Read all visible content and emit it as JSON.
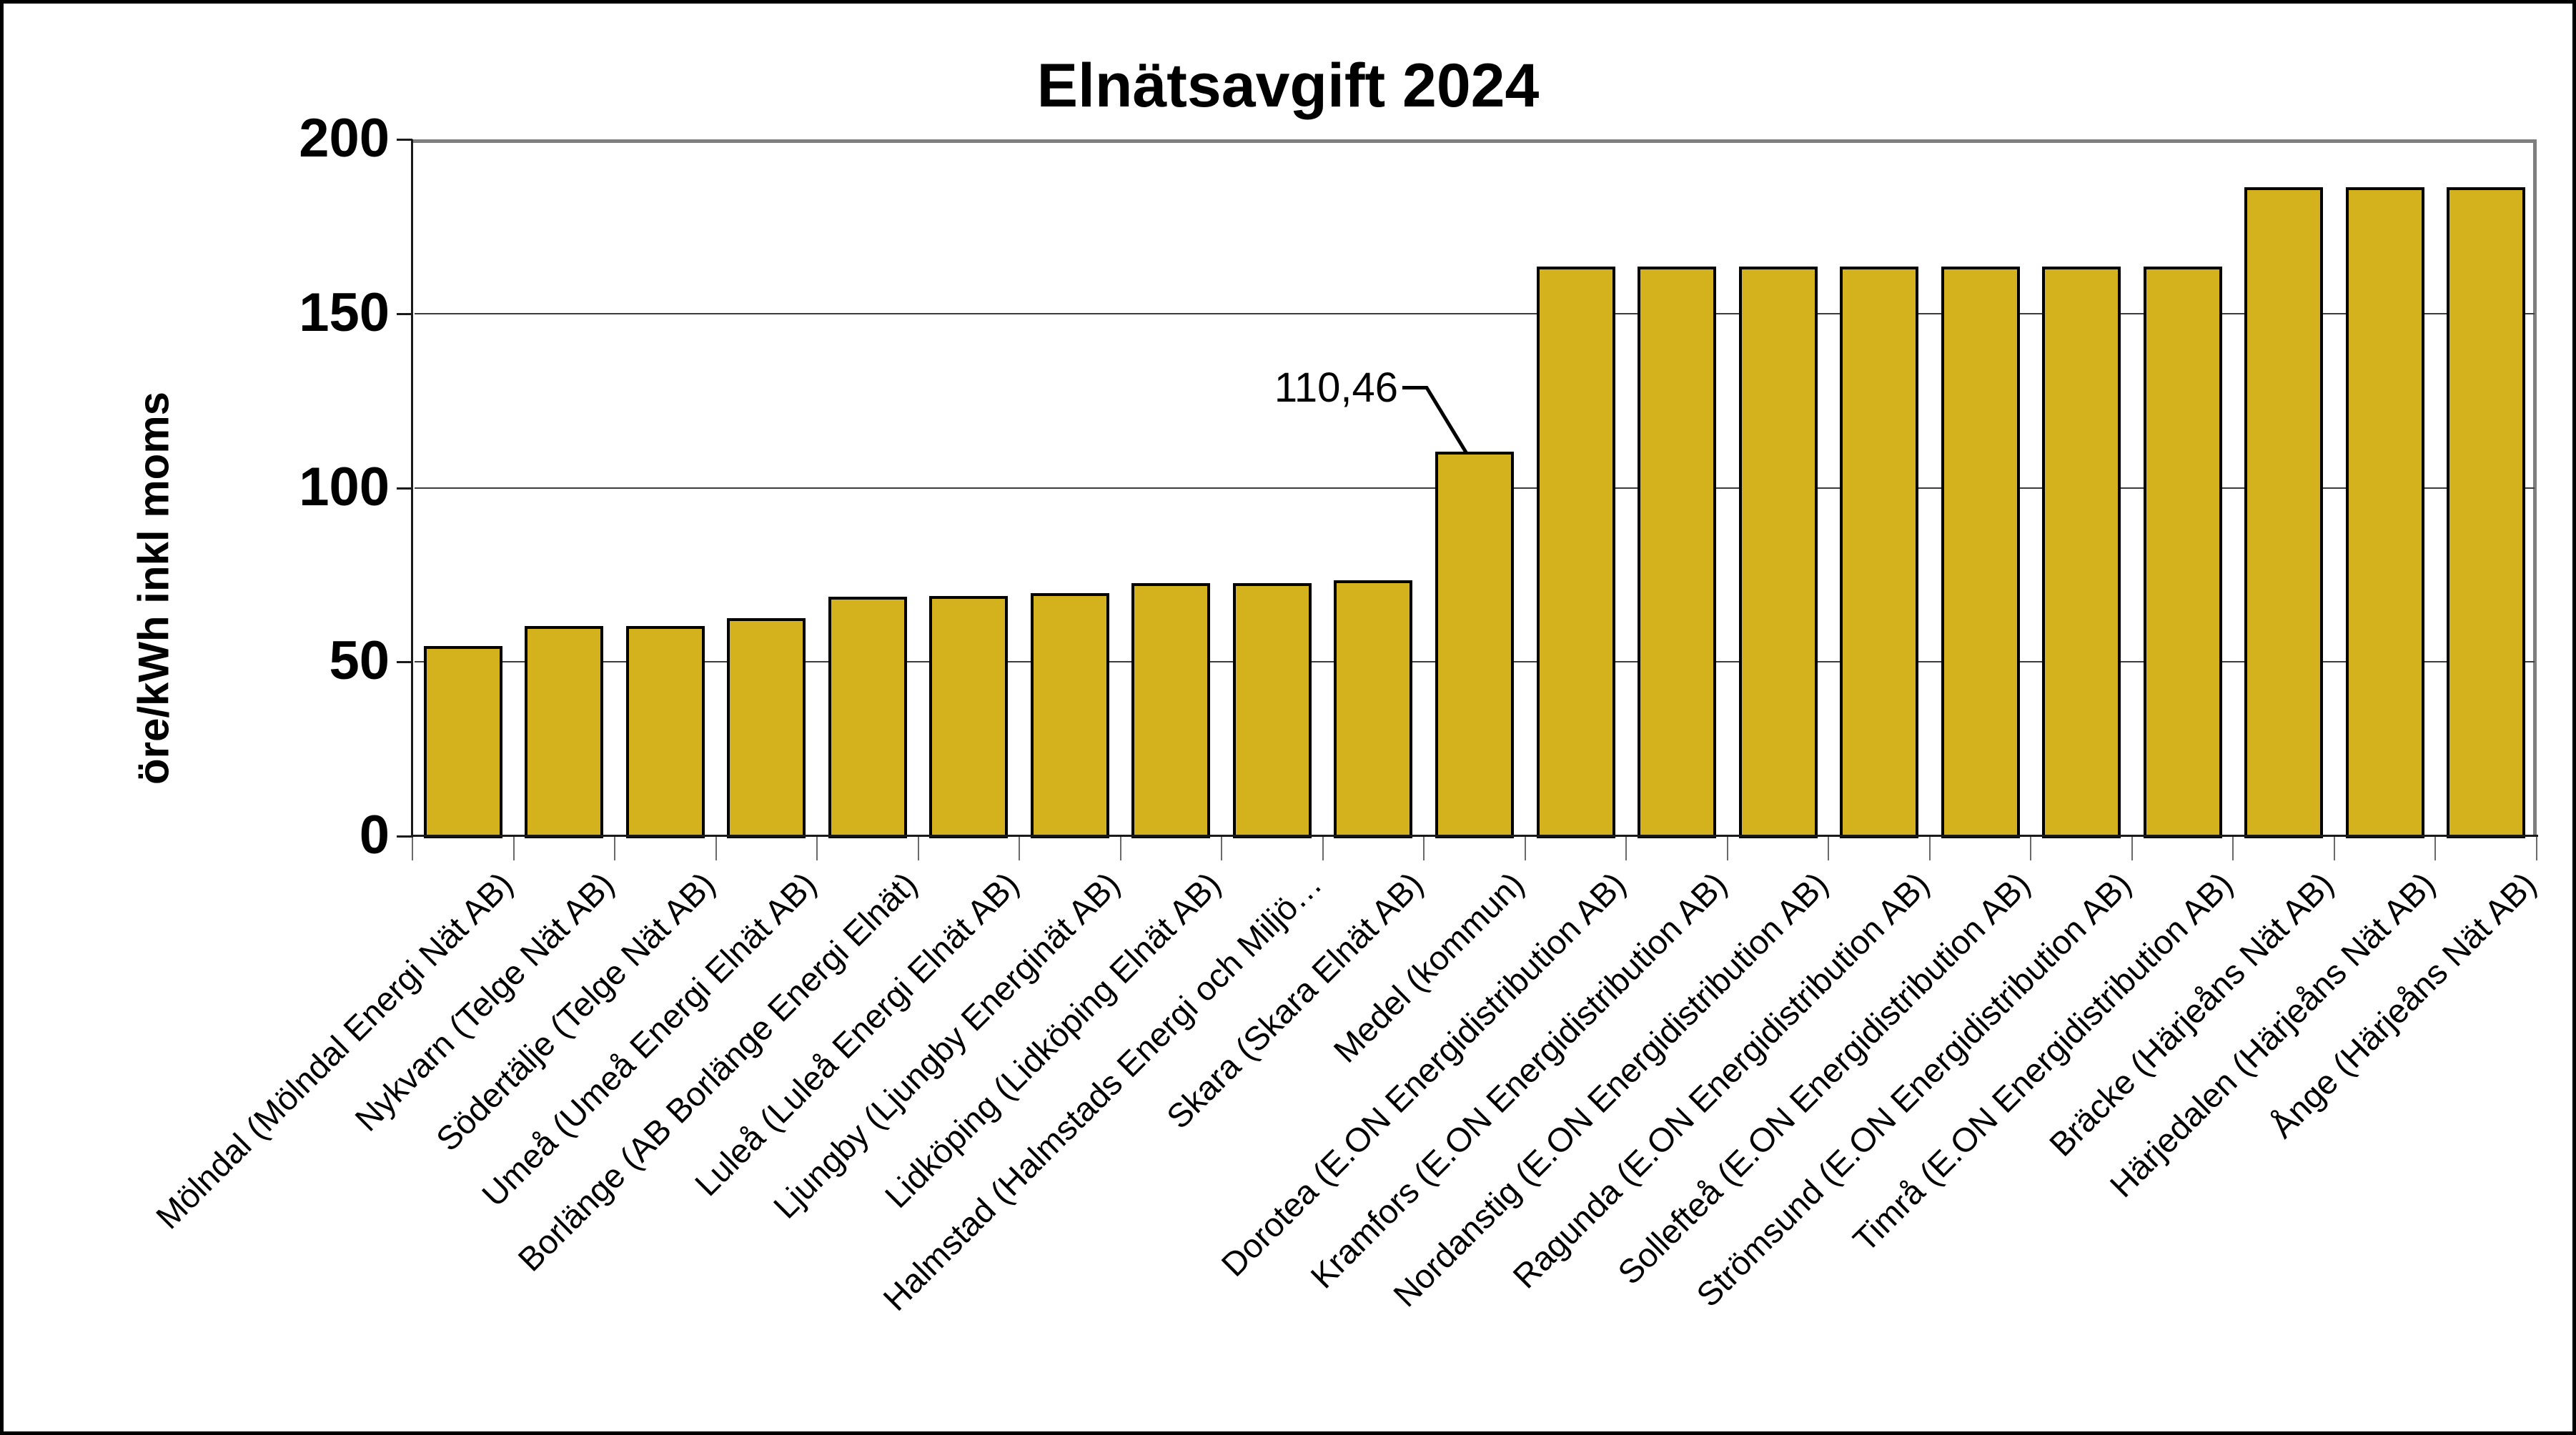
{
  "chart": {
    "title": "Elnätsavgift 2024"
  },
  "chart_data": {
    "type": "bar",
    "title": "Elnätsavgift 2024",
    "xlabel": "",
    "ylabel": "öre/kWh inkl moms",
    "ylim": [
      0,
      200
    ],
    "y_ticks": [
      0,
      50,
      100,
      150,
      200
    ],
    "grid": "horizontal gridlines at 50, 100, 150; gray frame on top and right",
    "legend": "none",
    "bar_color": "#D3B21D",
    "bar_border_color": "#000000",
    "frame_color": "#7f7f7f",
    "categories": [
      "Mölndal (Mölndal Energi Nät AB)",
      "Nykvarn (Telge Nät AB)",
      "Södertälje (Telge Nät AB)",
      "Umeå (Umeå Energi Elnät AB)",
      "Borlänge (AB Borlänge Energi Elnät)",
      "Luleå (Luleå Energi Elnät AB)",
      "Ljungby (Ljungby Energinät AB)",
      "Lidköping (Lidköping Elnät AB)",
      "Halmstad (Halmstads Energi och Miljö…",
      "Skara (Skara Elnät AB)",
      "Medel (kommun)",
      "Dorotea (E.ON Energidistribution AB)",
      "Kramfors (E.ON Energidistribution AB)",
      "Nordanstig (E.ON Energidistribution AB)",
      "Ragunda (E.ON Energidistribution AB)",
      "Sollefteå (E.ON Energidistribution AB)",
      "Strömsund (E.ON Energidistribution AB)",
      "Timrå (E.ON Energidistribution AB)",
      "Bräcke (Härjeåns Nät AB)",
      "Härjedalen (Härjeåns Nät AB)",
      "Ånge (Härjeåns Nät AB)"
    ],
    "values": [
      54.5,
      60.4,
      60.4,
      62.5,
      68.8,
      68.9,
      69.7,
      72.6,
      72.6,
      73.5,
      110.46,
      163.4,
      163.4,
      163.4,
      163.4,
      163.4,
      163.4,
      163.4,
      186.3,
      186.3,
      186.3
    ],
    "annotation": {
      "text": "110,46",
      "category": "Medel (kommun)",
      "value": 110.46
    }
  }
}
